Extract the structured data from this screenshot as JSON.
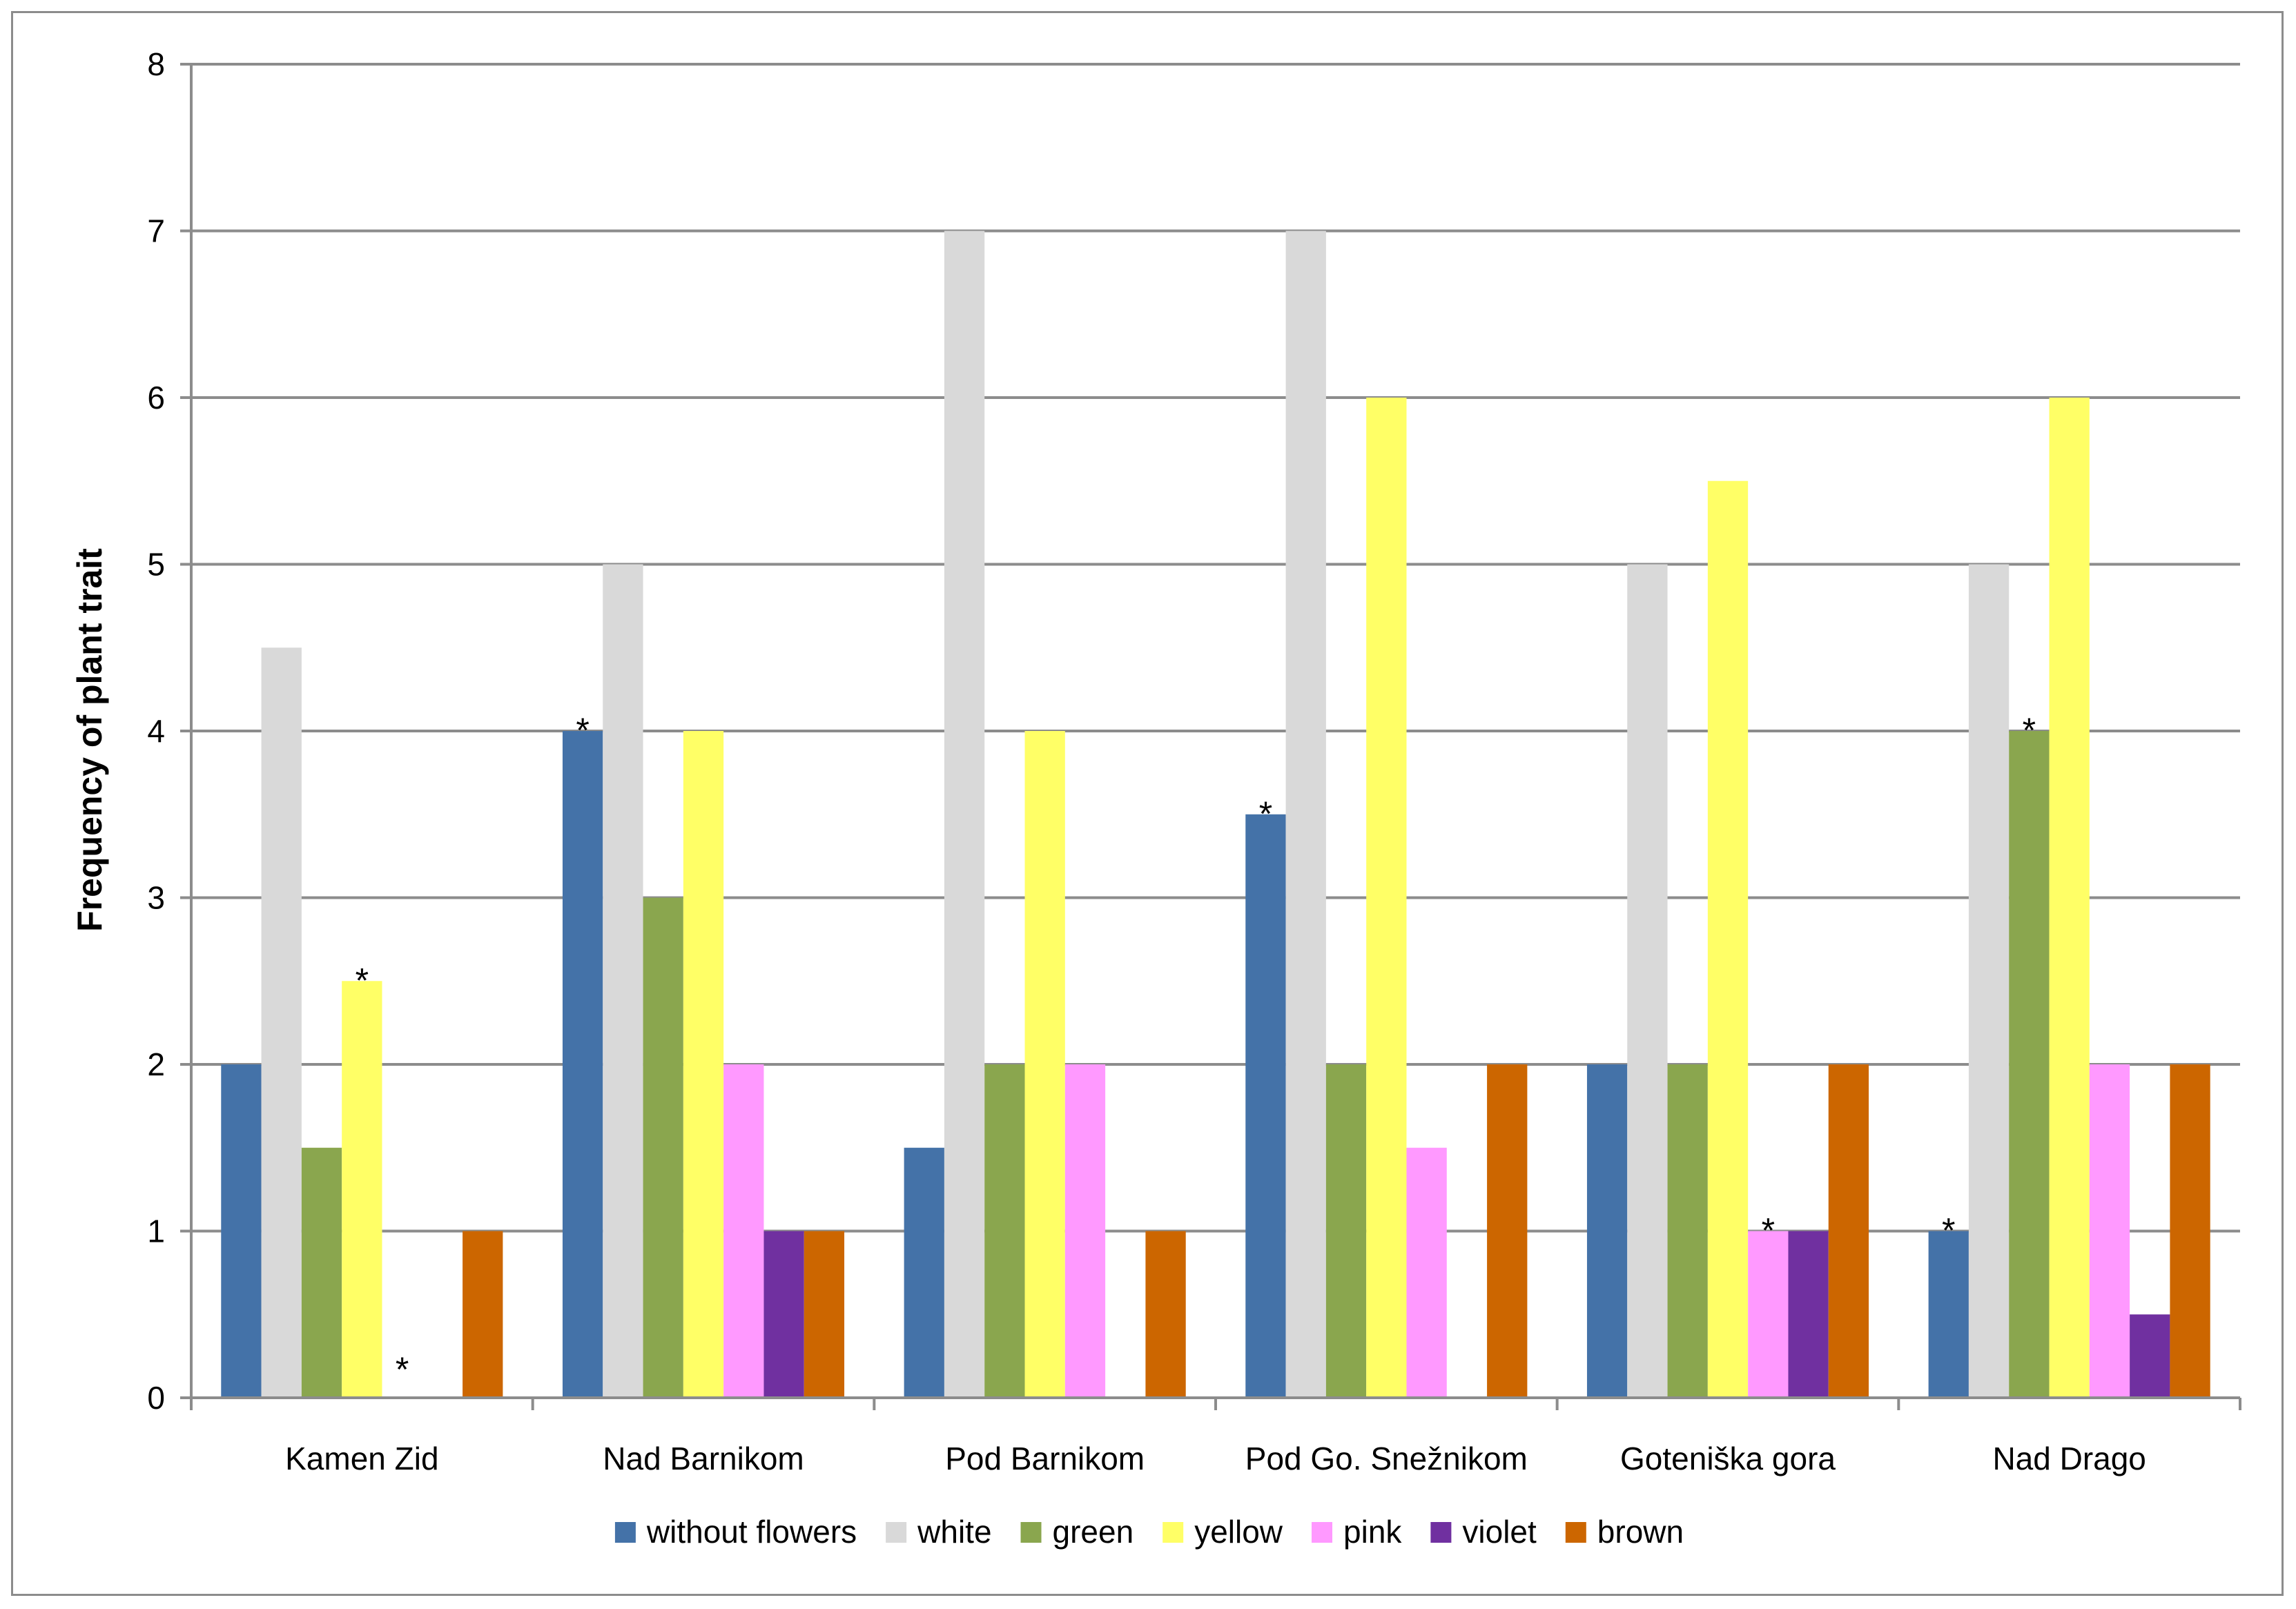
{
  "chart_data": {
    "type": "bar",
    "title": "",
    "xlabel": "",
    "ylabel": "Frequency of plant trait",
    "ylim": [
      0,
      8
    ],
    "yticks": [
      "0",
      "1",
      "2",
      "3",
      "4",
      "5",
      "6",
      "7",
      "8"
    ],
    "grid": "horizontal",
    "legend_position": "bottom",
    "categories": [
      "Kamen Zid",
      "Nad Barnikom",
      "Pod Barnikom",
      "Pod Go. Snežnikom",
      "Goteniška gora",
      "Nad Drago"
    ],
    "series": [
      {
        "name": "without flowers",
        "color": "#4472A8",
        "values": [
          2,
          4,
          1.5,
          3.5,
          2,
          1
        ]
      },
      {
        "name": "white",
        "color": "#D9D9D9",
        "values": [
          4.5,
          5,
          7,
          7,
          5,
          5
        ]
      },
      {
        "name": "green",
        "color": "#8AA64E",
        "values": [
          1.5,
          3,
          2,
          2,
          2,
          4
        ]
      },
      {
        "name": "yellow",
        "color": "#FFFF66",
        "values": [
          2.5,
          4,
          4,
          6,
          5.5,
          6
        ]
      },
      {
        "name": "pink",
        "color": "#FF99FF",
        "values": [
          0,
          2,
          2,
          1.5,
          1,
          2
        ]
      },
      {
        "name": "violet",
        "color": "#7030A0",
        "values": [
          0,
          1,
          0,
          0,
          1,
          0.5
        ]
      },
      {
        "name": "brown",
        "color": "#CC6600",
        "values": [
          1,
          1,
          1,
          2,
          2,
          2
        ]
      }
    ],
    "annotations": [
      {
        "category": "Kamen Zid",
        "series": "yellow",
        "text": "*"
      },
      {
        "category": "Kamen Zid",
        "series": "pink",
        "text": "*"
      },
      {
        "category": "Nad Barnikom",
        "series": "without flowers",
        "text": "*"
      },
      {
        "category": "Pod Go. Snežnikom",
        "series": "without flowers",
        "text": "*"
      },
      {
        "category": "Goteniška gora",
        "series": "pink",
        "text": "*"
      },
      {
        "category": "Nad Drago",
        "series": "green",
        "text": "*"
      },
      {
        "category": "Nad Drago",
        "series": "without flowers",
        "text": "*"
      }
    ]
  }
}
